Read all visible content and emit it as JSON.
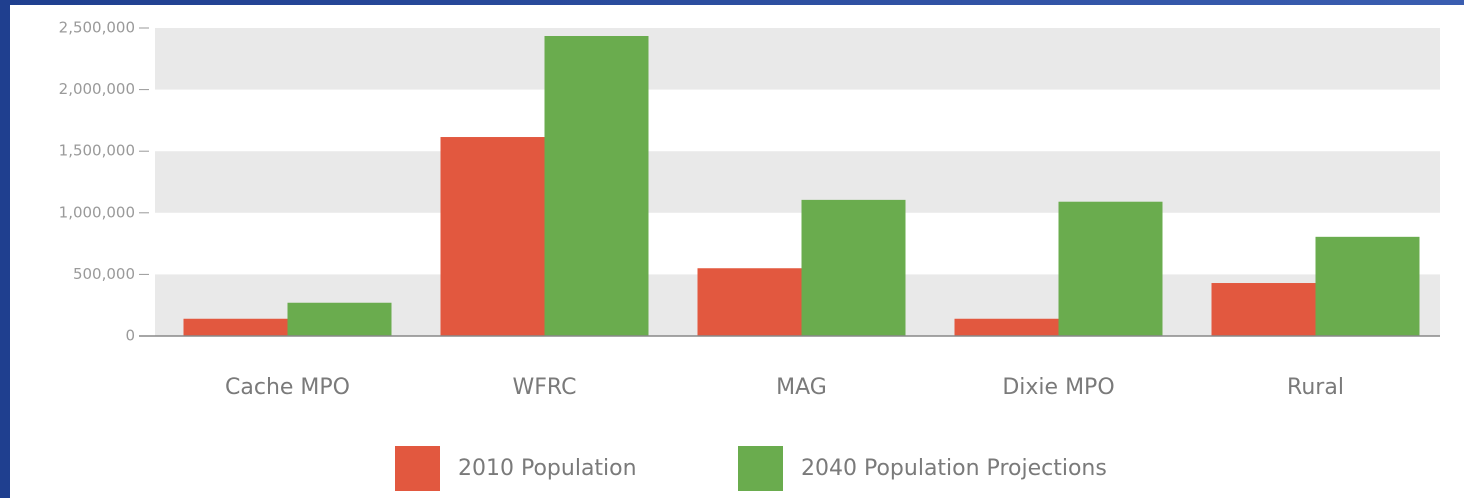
{
  "chart_data": {
    "type": "bar",
    "categories": [
      "Cache MPO",
      "WFRC",
      "MAG",
      "Dixie MPO",
      "Rural"
    ],
    "series": [
      {
        "name": "2010 Population",
        "color": "#e2583f",
        "values": [
          140000,
          1615000,
          550000,
          140000,
          430000
        ]
      },
      {
        "name": "2040 Population Projections",
        "color": "#6aac4e",
        "values": [
          270000,
          2435000,
          1105000,
          1090000,
          805000
        ]
      }
    ],
    "ylim": [
      0,
      2500000
    ],
    "yticks": [
      0,
      {
        "value": 500000,
        "label": "500,000"
      },
      {
        "value": 1000000,
        "label": "1,000,000"
      },
      {
        "value": 1500000,
        "label": "1,500,000"
      },
      {
        "value": 2000000,
        "label": "2,000,000"
      },
      {
        "value": 2500000,
        "label": "2,500,000"
      }
    ],
    "grid": true
  }
}
